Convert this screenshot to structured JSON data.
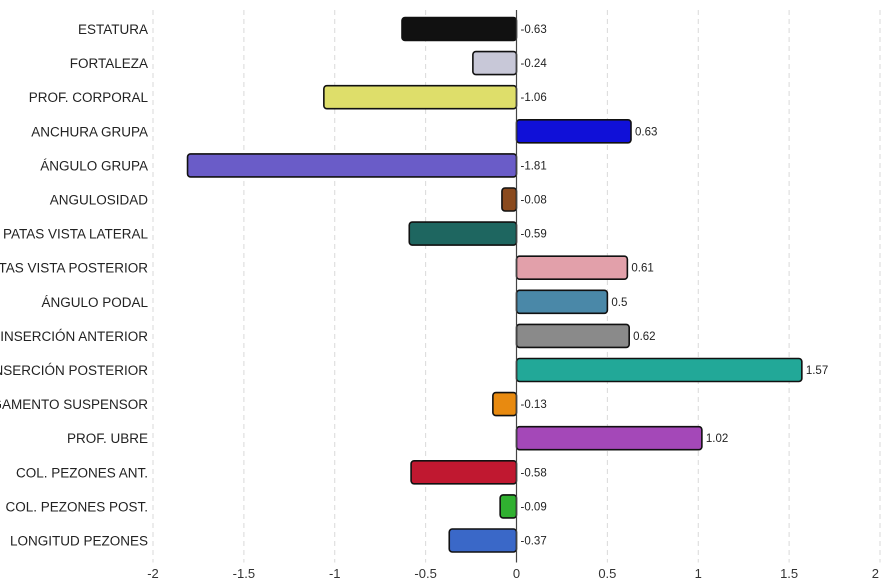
{
  "chart_data": {
    "type": "bar",
    "orientation": "horizontal",
    "categories": [
      "ESTATURA",
      "FORTALEZA",
      "PROF. CORPORAL",
      "ANCHURA GRUPA",
      "ÁNGULO GRUPA",
      "ANGULOSIDAD",
      "PATAS VISTA LATERAL",
      "PATAS VISTA POSTERIOR",
      "ÁNGULO PODAL",
      "INSERCIÓN ANTERIOR",
      "INSERCIÓN POSTERIOR",
      "LIGAMENTO SUSPENSOR",
      "PROF. UBRE",
      "COL. PEZONES ANT.",
      "COL. PEZONES POST.",
      "LONGITUD PEZONES"
    ],
    "values": [
      -0.63,
      -0.24,
      -1.06,
      0.63,
      -1.81,
      -0.08,
      -0.59,
      0.61,
      0.5,
      0.62,
      1.57,
      -0.13,
      1.02,
      -0.58,
      -0.09,
      -0.37
    ],
    "value_labels": [
      "-0.63",
      "-0.24",
      "-1.06",
      "0.63",
      "-1.81",
      "-0.08",
      "-0.59",
      "0.61",
      "0.5",
      "0.62",
      "1.57",
      "-0.13",
      "1.02",
      "-0.58",
      "-0.09",
      "-0.37"
    ],
    "colors": [
      "#111111",
      "#c8c8d8",
      "#dede6a",
      "#1010d8",
      "#6a5cc8",
      "#8a4a1e",
      "#1e6660",
      "#e2a0aa",
      "#4a88a8",
      "#8a8a8a",
      "#22a898",
      "#e88a10",
      "#a448b8",
      "#c01830",
      "#30b030",
      "#3a68c8"
    ],
    "x_ticks": [
      -2,
      -1.5,
      -1,
      -0.5,
      0,
      0.5,
      1,
      1.5,
      2
    ],
    "x_tick_labels": [
      "-2",
      "-1.5",
      "-1",
      "-0.5",
      "0",
      "0.5",
      "1",
      "1.5",
      "2"
    ],
    "xlim": [
      -2,
      2
    ],
    "title": "",
    "xlabel": "",
    "ylabel": "",
    "grid": true,
    "legend": "none"
  }
}
